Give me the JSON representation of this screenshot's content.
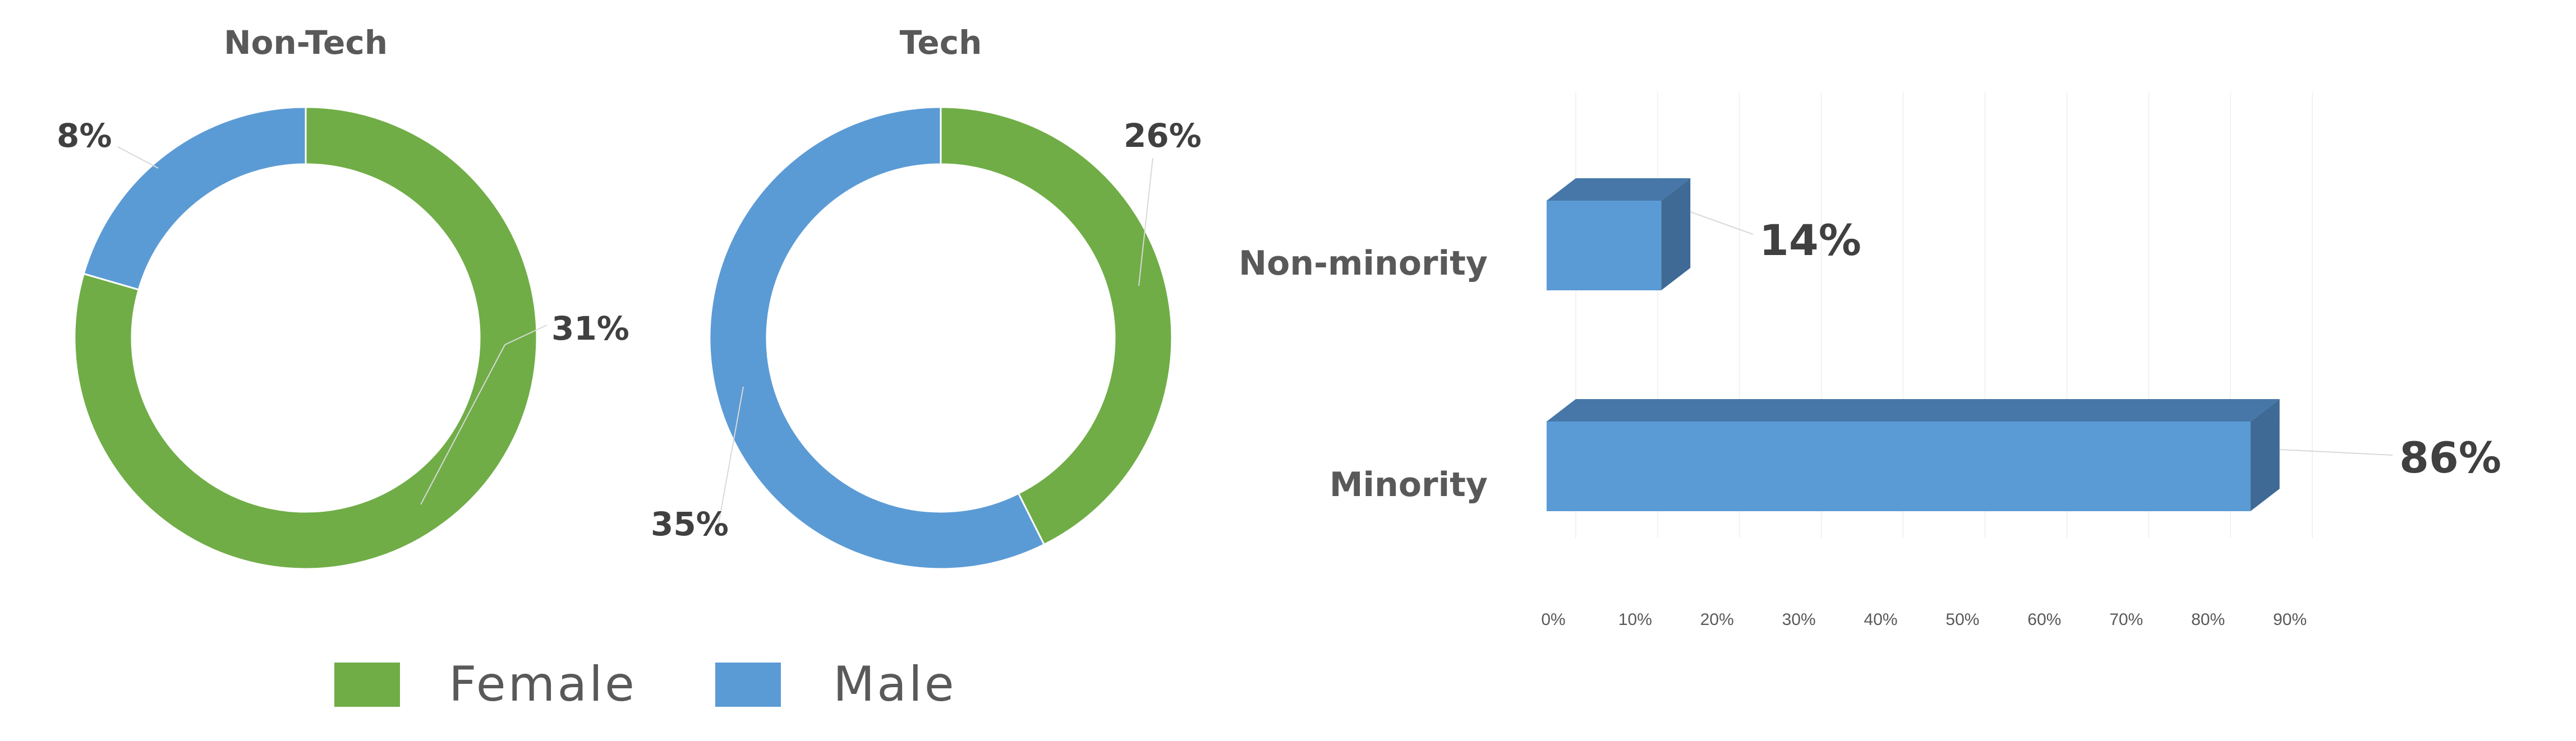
{
  "colors": {
    "female": "#70AD47",
    "male": "#5B9BD5",
    "bar_front": "#5B9BD5",
    "bar_top": "#4677A8",
    "bar_side": "#3E6A95"
  },
  "legend": {
    "items": [
      {
        "label": "Female",
        "color": "#70AD47"
      },
      {
        "label": "Male",
        "color": "#5B9BD5"
      }
    ]
  },
  "chart_data": [
    {
      "type": "pie",
      "title": "Non-Tech",
      "donut": true,
      "labels": [
        "Male",
        "Female"
      ],
      "data_labels": [
        "8%",
        "31%"
      ],
      "values": [
        8,
        31
      ]
    },
    {
      "type": "pie",
      "title": "Tech",
      "donut": true,
      "labels": [
        "Female",
        "Male"
      ],
      "data_labels": [
        "26%",
        "35%"
      ],
      "values": [
        26,
        35
      ]
    },
    {
      "type": "bar",
      "orientation": "horizontal",
      "style": "3d",
      "categories": [
        "Non-minority",
        "Minority"
      ],
      "values": [
        14,
        86
      ],
      "data_labels": [
        "14%",
        "86%"
      ],
      "xlim": [
        0,
        90
      ],
      "x_ticks": [
        "0%",
        "10%",
        "20%",
        "30%",
        "40%",
        "50%",
        "60%",
        "70%",
        "80%",
        "90%"
      ],
      "grid": true
    }
  ]
}
